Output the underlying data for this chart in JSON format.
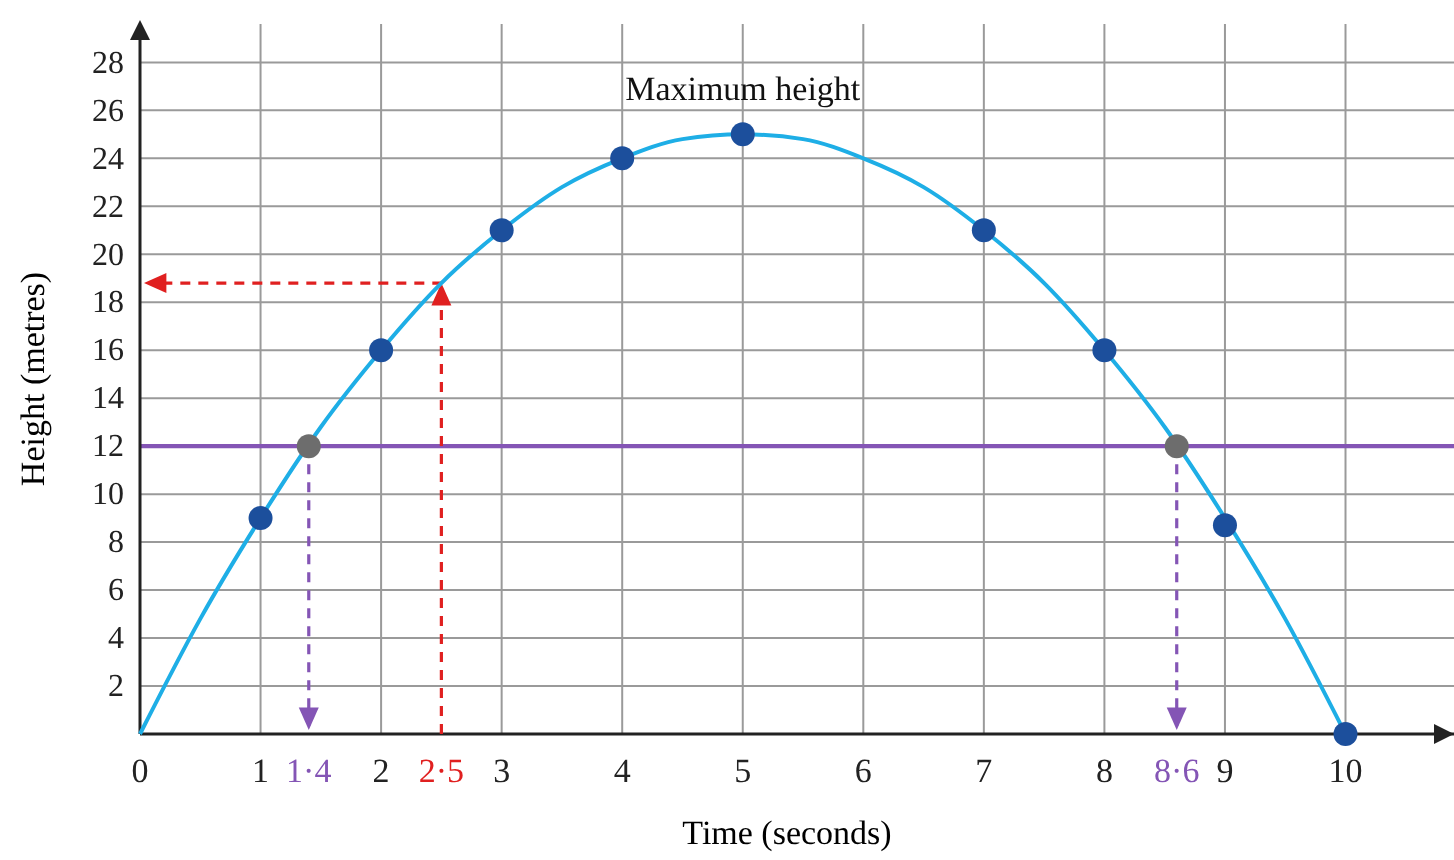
{
  "chart_data": {
    "type": "line",
    "xlabel": "Time (seconds)",
    "ylabel": "Height (metres)",
    "xlim": [
      0,
      10.9
    ],
    "ylim": [
      0,
      29.6
    ],
    "xticks": [
      0,
      1,
      {
        "value": 1.4,
        "label": "1·4"
      },
      2,
      {
        "value": 2.5,
        "label": "2·5"
      },
      3,
      4,
      5,
      6,
      7,
      8,
      {
        "value": 8.6,
        "label": "8·6"
      },
      9,
      10
    ],
    "yticks": [
      2,
      4,
      6,
      8,
      10,
      12,
      14,
      16,
      18,
      20,
      22,
      24,
      26,
      28
    ],
    "grid": true,
    "series": [
      {
        "color": "#1eaee6",
        "x": [
          0,
          0.5,
          1,
          1.5,
          2,
          2.5,
          3,
          3.5,
          4,
          4.5,
          5,
          5.5,
          6,
          6.5,
          7,
          7.5,
          8,
          8.5,
          9,
          9.5,
          10
        ],
        "values": [
          0,
          4.8,
          9,
          12.8,
          16,
          18.8,
          21,
          22.8,
          24,
          24.8,
          25,
          24.8,
          24,
          22.8,
          21,
          18.8,
          16,
          12.8,
          9,
          4.8,
          0
        ]
      },
      {
        "type": "scatter",
        "color": "#1c4f9c",
        "marker": "circle",
        "x": [
          1,
          2,
          3,
          4,
          5,
          7,
          8,
          9,
          10
        ],
        "values": [
          9,
          16,
          21,
          24,
          25,
          21,
          16,
          8.7,
          0
        ]
      },
      {
        "type": "scatter",
        "color": "#6d6d6d",
        "marker": "circle",
        "x": [
          1.4,
          8.6
        ],
        "values": [
          12,
          12
        ]
      }
    ],
    "ref_lines": [
      {
        "axis": "y",
        "value": 12,
        "color": "#8455b5"
      }
    ],
    "annotations": [
      {
        "text": "Maximum height",
        "x": 5,
        "y": 25
      }
    ]
  }
}
